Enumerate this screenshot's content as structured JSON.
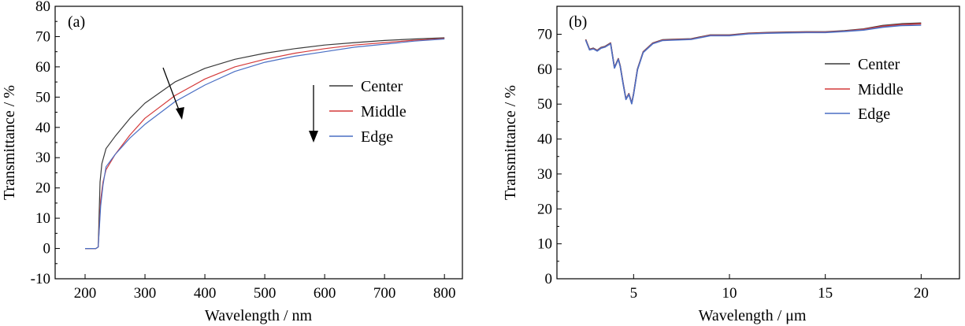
{
  "colors": {
    "center": "#3a3a3a",
    "middle": "#d43a3a",
    "edge": "#4a6fc4",
    "axis": "#000000"
  },
  "chart_data": [
    {
      "type": "line",
      "panel_label": "(a)",
      "xlabel": "Wavelength / nm",
      "ylabel": "Transmittance / %",
      "xlim": [
        150,
        830
      ],
      "ylim": [
        -10,
        80
      ],
      "xticks": [
        200,
        300,
        400,
        500,
        600,
        700,
        800
      ],
      "yticks": [
        -10,
        0,
        10,
        20,
        30,
        40,
        50,
        60,
        70,
        80
      ],
      "grid": false,
      "legend_position": "right",
      "series": [
        {
          "name": "Center",
          "color_key": "center",
          "x": [
            200,
            218,
            222,
            225,
            228,
            235,
            250,
            275,
            300,
            350,
            400,
            450,
            500,
            550,
            600,
            650,
            700,
            750,
            800
          ],
          "y": [
            0,
            0,
            0.5,
            22,
            28,
            33,
            37,
            43,
            48,
            55,
            59.5,
            62.5,
            64.5,
            66,
            67.2,
            68,
            68.7,
            69.2,
            69.6
          ]
        },
        {
          "name": "Middle",
          "color_key": "middle",
          "x": [
            200,
            218,
            222,
            226,
            230,
            235,
            250,
            275,
            300,
            350,
            400,
            450,
            500,
            550,
            600,
            650,
            700,
            750,
            800
          ],
          "y": [
            0,
            0,
            0.5,
            16,
            22,
            26,
            31,
            37.5,
            43,
            50.5,
            56,
            60,
            62.5,
            64.5,
            66,
            67.2,
            68,
            68.8,
            69.4
          ]
        },
        {
          "name": "Edge",
          "color_key": "edge",
          "x": [
            200,
            218,
            222,
            226,
            230,
            235,
            250,
            275,
            300,
            350,
            400,
            450,
            500,
            550,
            600,
            650,
            700,
            750,
            800
          ],
          "y": [
            0,
            0,
            0.5,
            14,
            21,
            27,
            31,
            36.5,
            41,
            48.5,
            54,
            58.5,
            61.5,
            63.5,
            65,
            66.5,
            67.5,
            68.5,
            69.2
          ]
        }
      ]
    },
    {
      "type": "line",
      "panel_label": "(b)",
      "xlabel": "Wavelength / μm",
      "ylabel": "Transmittance / %",
      "xlim": [
        1,
        22
      ],
      "ylim": [
        0,
        78
      ],
      "xticks": [
        5,
        10,
        15,
        20
      ],
      "yticks": [
        0,
        10,
        20,
        30,
        40,
        50,
        60,
        70
      ],
      "grid": false,
      "legend_position": "right",
      "series": [
        {
          "name": "Center",
          "color_key": "center",
          "x": [
            2.5,
            2.7,
            2.9,
            3.1,
            3.3,
            3.5,
            3.8,
            4.0,
            4.2,
            4.3,
            4.45,
            4.6,
            4.75,
            4.9,
            5.0,
            5.2,
            5.5,
            6.0,
            6.5,
            7,
            8,
            9,
            10,
            11,
            12,
            13,
            14,
            15,
            16,
            17,
            18,
            19,
            20
          ],
          "y": [
            68.5,
            65.7,
            66.0,
            65.4,
            66.2,
            66.5,
            67.5,
            60.5,
            63,
            61,
            56,
            51.5,
            53,
            50.3,
            53,
            60,
            65,
            67.5,
            68.4,
            68.5,
            68.7,
            69.8,
            69.8,
            70.3,
            70.5,
            70.6,
            70.7,
            70.7,
            71,
            71.5,
            72.5,
            73,
            73.2
          ]
        },
        {
          "name": "Middle",
          "color_key": "middle",
          "x": [
            2.5,
            2.7,
            2.9,
            3.1,
            3.3,
            3.5,
            3.8,
            4.0,
            4.2,
            4.3,
            4.45,
            4.6,
            4.75,
            4.9,
            5.0,
            5.2,
            5.5,
            6.0,
            6.5,
            7,
            8,
            9,
            10,
            11,
            12,
            13,
            14,
            15,
            16,
            17,
            18,
            19,
            20
          ],
          "y": [
            68.4,
            65.6,
            65.9,
            65.3,
            66.1,
            66.4,
            67.4,
            60.4,
            62.9,
            60.9,
            55.9,
            51.4,
            52.9,
            50.2,
            52.9,
            59.9,
            64.9,
            67.4,
            68.3,
            68.4,
            68.6,
            69.7,
            69.7,
            70.2,
            70.4,
            70.5,
            70.6,
            70.6,
            70.9,
            71.4,
            72.3,
            72.8,
            73.0
          ]
        },
        {
          "name": "Edge",
          "color_key": "edge",
          "x": [
            2.5,
            2.7,
            2.9,
            3.1,
            3.3,
            3.5,
            3.8,
            4.0,
            4.2,
            4.3,
            4.45,
            4.6,
            4.75,
            4.9,
            5.0,
            5.2,
            5.5,
            6.0,
            6.5,
            7,
            8,
            9,
            10,
            11,
            12,
            13,
            14,
            15,
            16,
            17,
            18,
            19,
            20
          ],
          "y": [
            68.3,
            65.5,
            65.8,
            65.2,
            66.0,
            66.3,
            67.3,
            60.3,
            62.8,
            60.8,
            55.8,
            51.3,
            52.8,
            50.1,
            52.8,
            59.8,
            64.8,
            67.3,
            68.2,
            68.3,
            68.5,
            69.6,
            69.6,
            70.1,
            70.3,
            70.4,
            70.5,
            70.5,
            70.8,
            71.2,
            72.0,
            72.5,
            72.6
          ]
        }
      ]
    }
  ]
}
